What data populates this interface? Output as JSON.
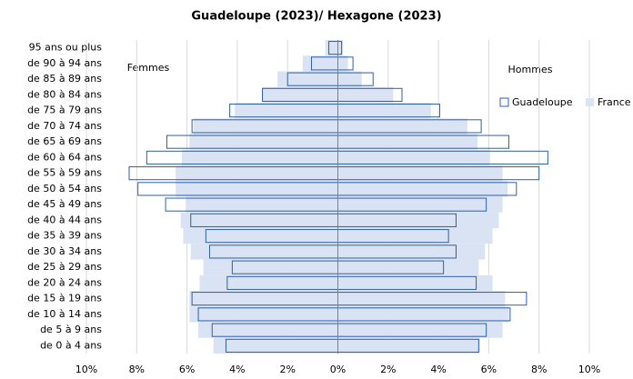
{
  "chart_data": {
    "type": "pyramid",
    "title": "Guadeloupe (2023)/ Hexagone (2023)",
    "groups": [
      "Femmes",
      "Hommes"
    ],
    "categories": [
      "de 0 à 4 ans",
      "de 5 à 9 ans",
      "de 10 à 14 ans",
      "de 15 à 19 ans",
      "de 20 à 24 ans",
      "de 25 à 29 ans",
      "de 30 à 34 ans",
      "de 35 à 39 ans",
      "de 40 à 44 ans",
      "de 45 à 49 ans",
      "de 50 à 54 ans",
      "de 55 à 59 ans",
      "de 60 à 64 ans",
      "de 65 à 69 ans",
      "de 70 à 74 ans",
      "de 75 à 79 ans",
      "de 80 à 84 ans",
      "de 85 à 89 ans",
      "de 90 à 94 ans",
      "95 ans ou plus"
    ],
    "series": [
      {
        "name": "France",
        "color": "#dae3f3",
        "filled": true,
        "values": [
          [
            4.95,
            5.55,
            5.9,
            5.9,
            5.5,
            5.35,
            5.85,
            6.15,
            6.25,
            6.05,
            6.45,
            6.45,
            6.2,
            5.9,
            5.75,
            4.1,
            3.0,
            2.4,
            1.4,
            0.5
          ],
          [
            5.65,
            6.55,
            6.8,
            6.65,
            6.15,
            5.6,
            5.85,
            6.15,
            6.4,
            6.55,
            6.75,
            6.55,
            6.05,
            5.55,
            5.15,
            3.7,
            2.2,
            0.95,
            0.4,
            0.2
          ]
        ]
      },
      {
        "name": "Guadeloupe",
        "color": "#2f5fa8",
        "filled": false,
        "values": [
          [
            4.45,
            5.0,
            5.55,
            5.8,
            4.4,
            4.2,
            5.1,
            5.25,
            5.85,
            6.85,
            7.95,
            8.3,
            7.6,
            6.8,
            5.8,
            4.3,
            3.0,
            2.0,
            1.05,
            0.36
          ],
          [
            5.6,
            5.9,
            6.85,
            7.5,
            5.5,
            4.2,
            4.7,
            4.4,
            4.7,
            5.9,
            7.1,
            8.0,
            8.35,
            6.8,
            5.7,
            4.05,
            2.55,
            1.4,
            0.6,
            0.15
          ]
        ]
      }
    ],
    "xlim": [
      -10,
      10
    ],
    "xticks": [
      {
        "value": -10,
        "label": "10%"
      },
      {
        "value": -8,
        "label": "8%"
      },
      {
        "value": -6,
        "label": "6%"
      },
      {
        "value": -4,
        "label": "4%"
      },
      {
        "value": -2,
        "label": "2%"
      },
      {
        "value": 0,
        "label": "0%"
      },
      {
        "value": 2,
        "label": "2%"
      },
      {
        "value": 4,
        "label": "4%"
      },
      {
        "value": 6,
        "label": "6%"
      },
      {
        "value": 8,
        "label": "8%"
      },
      {
        "value": 10,
        "label": "10%"
      }
    ],
    "grid": true
  }
}
